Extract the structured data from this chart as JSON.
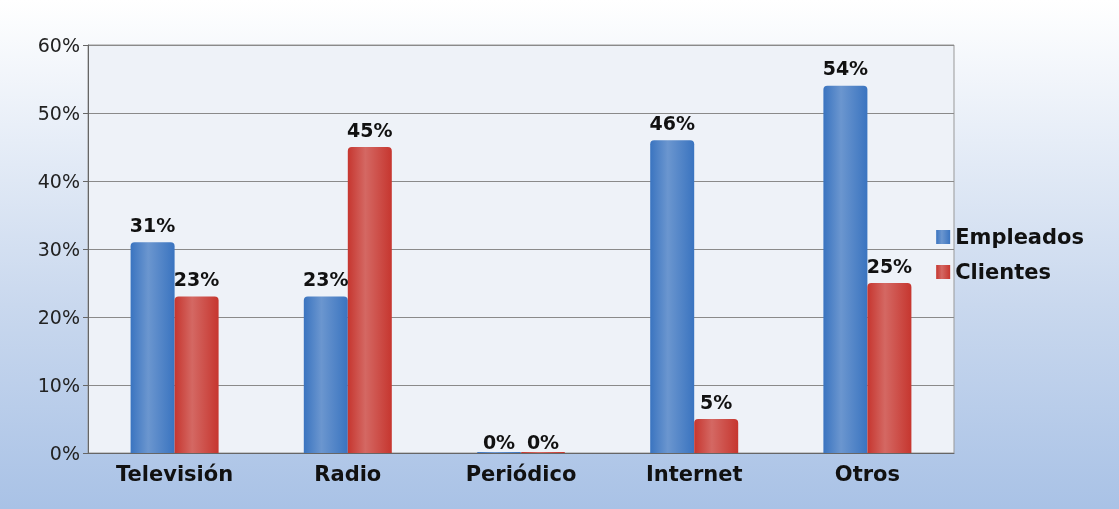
{
  "chart_data": {
    "type": "bar",
    "categories": [
      "Televisión",
      "Radio",
      "Periódico",
      "Internet",
      "Otros"
    ],
    "series": [
      {
        "name": "Empleados",
        "color": "#3a74c0",
        "values": [
          31,
          23,
          0,
          46,
          54
        ],
        "value_labels": [
          "31%",
          "23%",
          "0%",
          "46%",
          "54%"
        ]
      },
      {
        "name": "Clientes",
        "color": "#c6362f",
        "values": [
          23,
          45,
          0,
          5,
          25
        ],
        "value_labels": [
          "23%",
          "45%",
          "0%",
          "5%",
          "25%"
        ]
      }
    ],
    "ylim": [
      0,
      60
    ],
    "yticks": [
      {
        "value": 0,
        "label": "0%"
      },
      {
        "value": 10,
        "label": "10%"
      },
      {
        "value": 20,
        "label": "20%"
      },
      {
        "value": 30,
        "label": "30%"
      },
      {
        "value": 40,
        "label": "40%"
      },
      {
        "value": 50,
        "label": "50%"
      },
      {
        "value": 60,
        "label": "60%"
      }
    ],
    "grid": true,
    "legend": "right"
  }
}
